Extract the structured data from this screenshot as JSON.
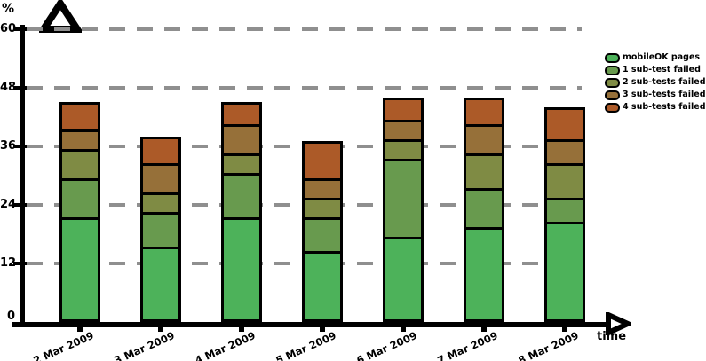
{
  "axes": {
    "y_unit_label": "%",
    "x_axis_label": "time",
    "y_origin_label": "0"
  },
  "chart_data": {
    "type": "bar",
    "stacked": true,
    "title": "",
    "xlabel": "time",
    "ylabel": "%",
    "categories": [
      "2 Mar 2009",
      "3 Mar 2009",
      "4 Mar 2009",
      "5 Mar 2009",
      "6 Mar 2009",
      "7 Mar 2009",
      "8 Mar 2009"
    ],
    "series": [
      {
        "name": "mobileOK pages",
        "color": "#4db25a",
        "values": [
          21,
          15,
          21,
          14,
          17,
          19,
          20
        ]
      },
      {
        "name": "1 sub-test failed",
        "color": "#689a4e",
        "values": [
          8,
          7,
          9,
          7,
          16,
          8,
          5
        ]
      },
      {
        "name": "2 sub-tests failed",
        "color": "#7f8b44",
        "values": [
          6,
          4,
          4,
          4,
          4,
          7,
          7
        ]
      },
      {
        "name": "3 sub-tests failed",
        "color": "#967039",
        "values": [
          4,
          6,
          6,
          4,
          4,
          6,
          5
        ]
      },
      {
        "name": "4 sub-tests failed",
        "color": "#ac5a28",
        "values": [
          5,
          5,
          4,
          7,
          4,
          5,
          6
        ]
      }
    ],
    "stack_totals": [
      44,
      37,
      44,
      36,
      45,
      45,
      43
    ],
    "y_ticks": [
      0,
      12,
      24,
      36,
      48,
      60
    ],
    "ylim": [
      0,
      66
    ],
    "grid": "dashed-horizontal",
    "grid_color": "#8f8f8f",
    "axis_color": "#000000",
    "background_color": "#ffffff",
    "legend_position": "top-right"
  }
}
